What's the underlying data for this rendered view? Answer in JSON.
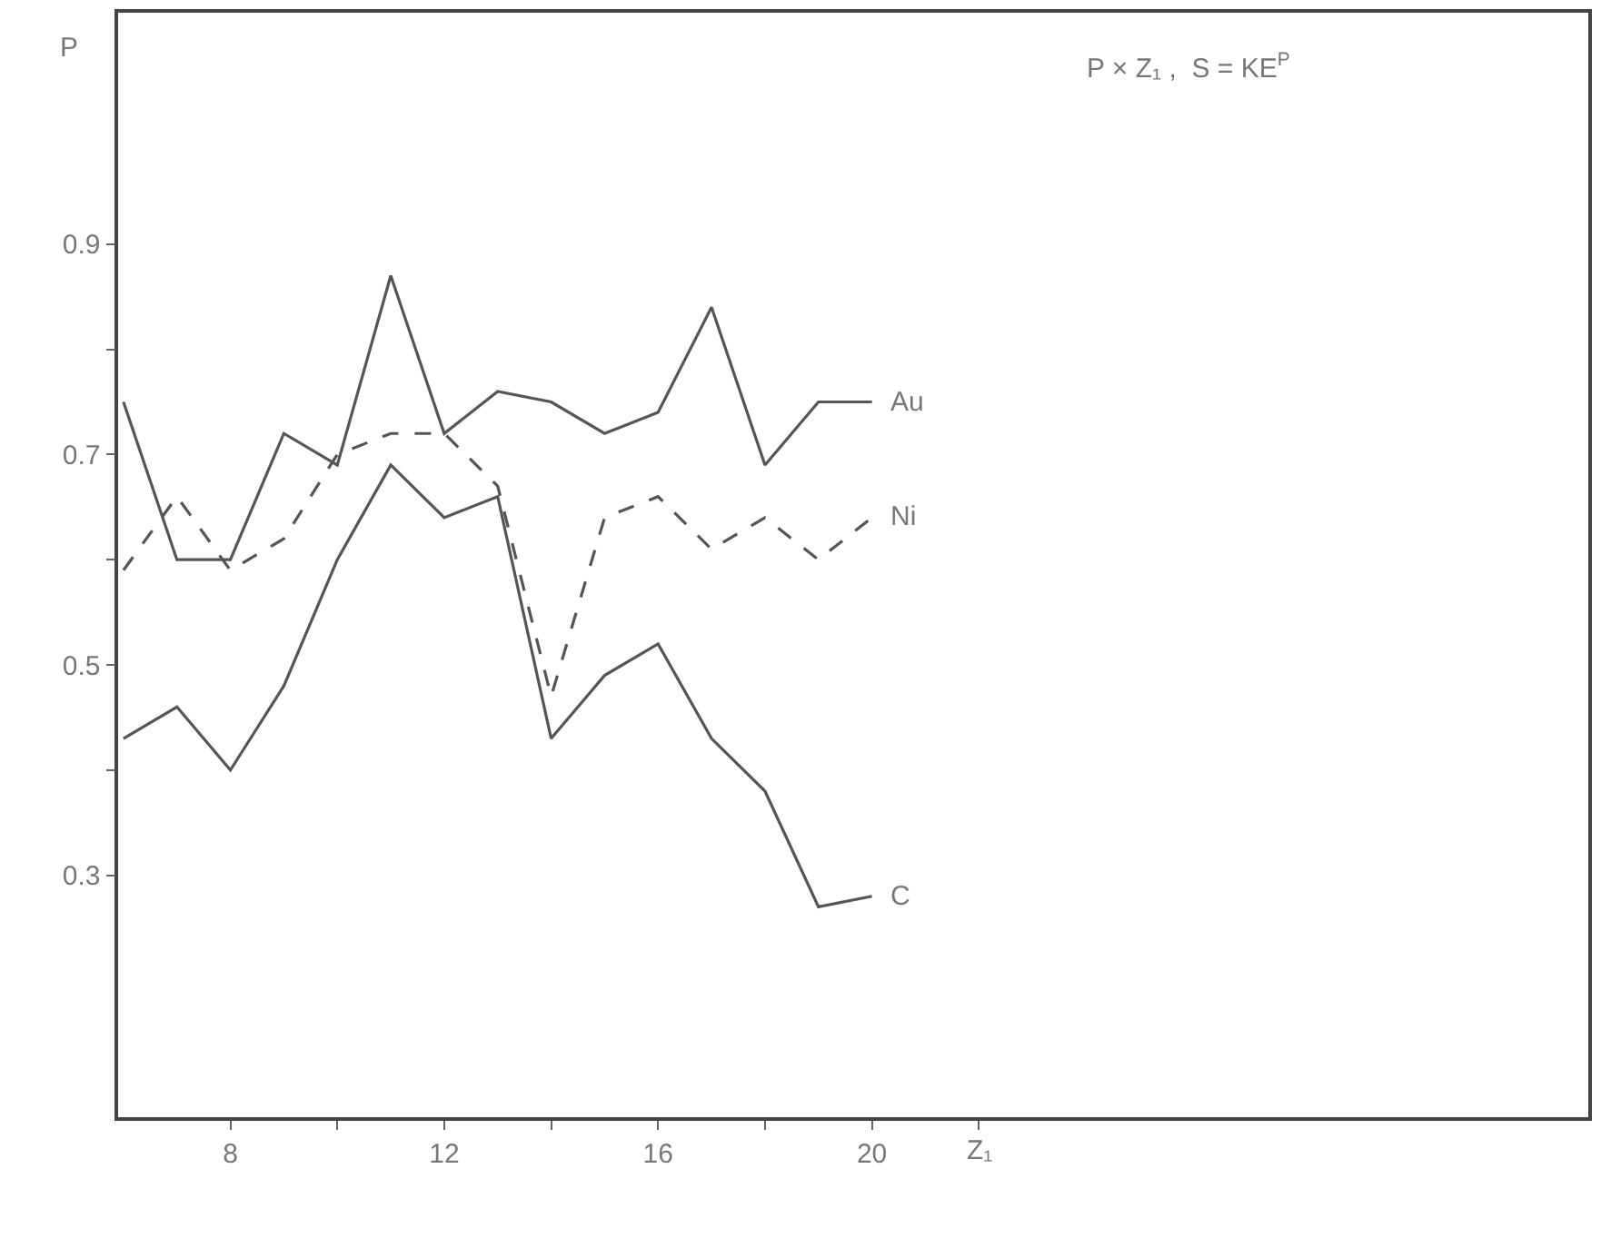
{
  "chart_data": {
    "type": "line",
    "title": "P × Z₁ ,  S = KE$^{P}$",
    "xlabel": "Z₁",
    "ylabel": "P",
    "x": [
      6,
      7,
      8,
      9,
      10,
      11,
      12,
      13,
      14,
      15,
      16,
      17,
      18,
      19,
      20
    ],
    "series": [
      {
        "name": "Au",
        "color": "#555555",
        "line_style": "solid",
        "values": [
          0.75,
          0.6,
          0.6,
          0.72,
          0.69,
          0.87,
          0.72,
          0.76,
          0.75,
          0.72,
          0.74,
          0.84,
          0.69,
          0.75,
          0.75
        ]
      },
      {
        "name": "Ni",
        "color": "#555555",
        "line_style": "dashed",
        "values": [
          0.59,
          0.66,
          0.59,
          0.62,
          0.7,
          0.72,
          0.72,
          0.67,
          0.47,
          0.64,
          0.66,
          0.61,
          0.64,
          0.6,
          0.64
        ]
      },
      {
        "name": "C",
        "color": "#555555",
        "line_style": "solid",
        "values": [
          0.43,
          0.46,
          0.4,
          0.48,
          0.6,
          0.69,
          0.64,
          0.66,
          0.43,
          0.49,
          0.52,
          0.43,
          0.38,
          0.27,
          0.28
        ]
      }
    ],
    "xlim": [
      5.9,
      33.4
    ],
    "ylim": [
      0.07,
      1.12
    ],
    "xticks": [
      8,
      {
        "value": 10,
        "label": null
      },
      12,
      {
        "value": 14,
        "label": null
      },
      16,
      {
        "value": 18,
        "label": null
      },
      20,
      {
        "value": 22,
        "label": null
      }
    ],
    "yticks": [
      0.3,
      {
        "value": 0.4,
        "label": null
      },
      0.5,
      {
        "value": 0.6,
        "label": null
      },
      0.7,
      {
        "value": 0.8,
        "label": null
      },
      0.9
    ],
    "legend": false,
    "marker": "none"
  }
}
